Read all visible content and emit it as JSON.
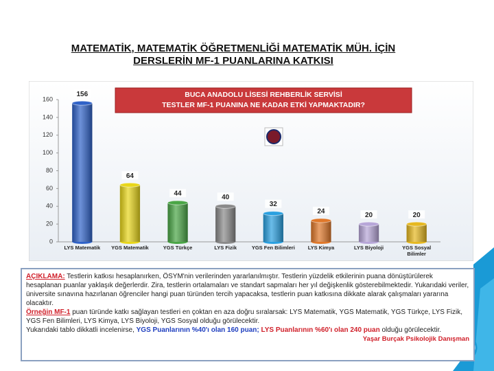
{
  "slide": {
    "title": "MATEMATİK, MATEMATİK ÖĞRETMENLİĞİ MATEMATİK MÜH. İÇİN DERSLERİN MF-1 PUANLARINA KATKISI"
  },
  "chart_data": {
    "type": "bar",
    "banner": [
      "BUCA ANADOLU LİSESİ REHBERLİK SERVİSİ",
      "TESTLER MF-1 PUANINA NE KADAR ETKİ YAPMAKTADIR?"
    ],
    "categories": [
      "LYS Matematik",
      "YGS Matematik",
      "YGS Türkçe",
      "LYS Fizik",
      "YGS Fen Bilimleri",
      "LYS Kimya",
      "LYS Biyoloji",
      "YGS Sosyal Bilimler"
    ],
    "values": [
      156,
      64,
      44,
      40,
      32,
      24,
      20,
      20
    ],
    "colors": [
      "#2f62c8",
      "#e8d61a",
      "#4aa646",
      "#8a8a8a",
      "#2aa0e0",
      "#e0782a",
      "#b7a6d8",
      "#e6b820"
    ],
    "ylim": [
      0,
      160
    ],
    "yticks": [
      0,
      20,
      40,
      60,
      80,
      100,
      120,
      140,
      160
    ],
    "grid": false
  },
  "note": {
    "paragraphs": [
      [
        {
          "text": "AÇIKLAMA:",
          "color": "#d0202a"
        },
        {
          "text": " Testlerin katkısı hesaplanırken, ÖSYM'nin verilerinden yararlanılmıştır. Testlerin yüzdelik etkilerinin puana dönüştürülerek hesaplanan puanlar yaklaşık değerlerdir. Zira, testlerin ortalamaları ve standart sapmaları her yıl değişkenlik gösterebilmektedir. Yukarıdaki veriler, üniversite sınavına hazırlanan öğrenciler hangi puan türünden tercih yapacaksa, testlerin puan katkısına dikkate alarak çalışmaları yararına olacaktır.",
          "color": "#222222"
        }
      ],
      [
        {
          "text": "Örneğin MF-1",
          "color": "#d0202a"
        },
        {
          "text": " puan türünde katkı sağlayan testleri en çoktan en aza doğru sıralarsak: LYS Matematik, YGS Matematik, YGS Türkçe, LYS Fizik, YGS Fen Bilimleri, LYS Kimya, LYS Biyoloji, YGS Sosyal olduğu görülecektir.",
          "color": "#222222"
        }
      ],
      [
        {
          "text": "Yukarıdaki tablo dikkatli incelenirse, ",
          "color": "#222222"
        },
        {
          "text": "YGS Puanlarının %40'ı olan 160 puan;",
          "color": "#1f3fbf"
        },
        {
          "text": " ",
          "color": "#222222"
        },
        {
          "text": "LYS Puanlarının %60'ı olan 240 puan",
          "color": "#d0202a"
        },
        {
          "text": " olduğu görülecektir.",
          "color": "#222222"
        }
      ]
    ],
    "signature": "Yaşar Burçak Psikolojik Danışman"
  }
}
